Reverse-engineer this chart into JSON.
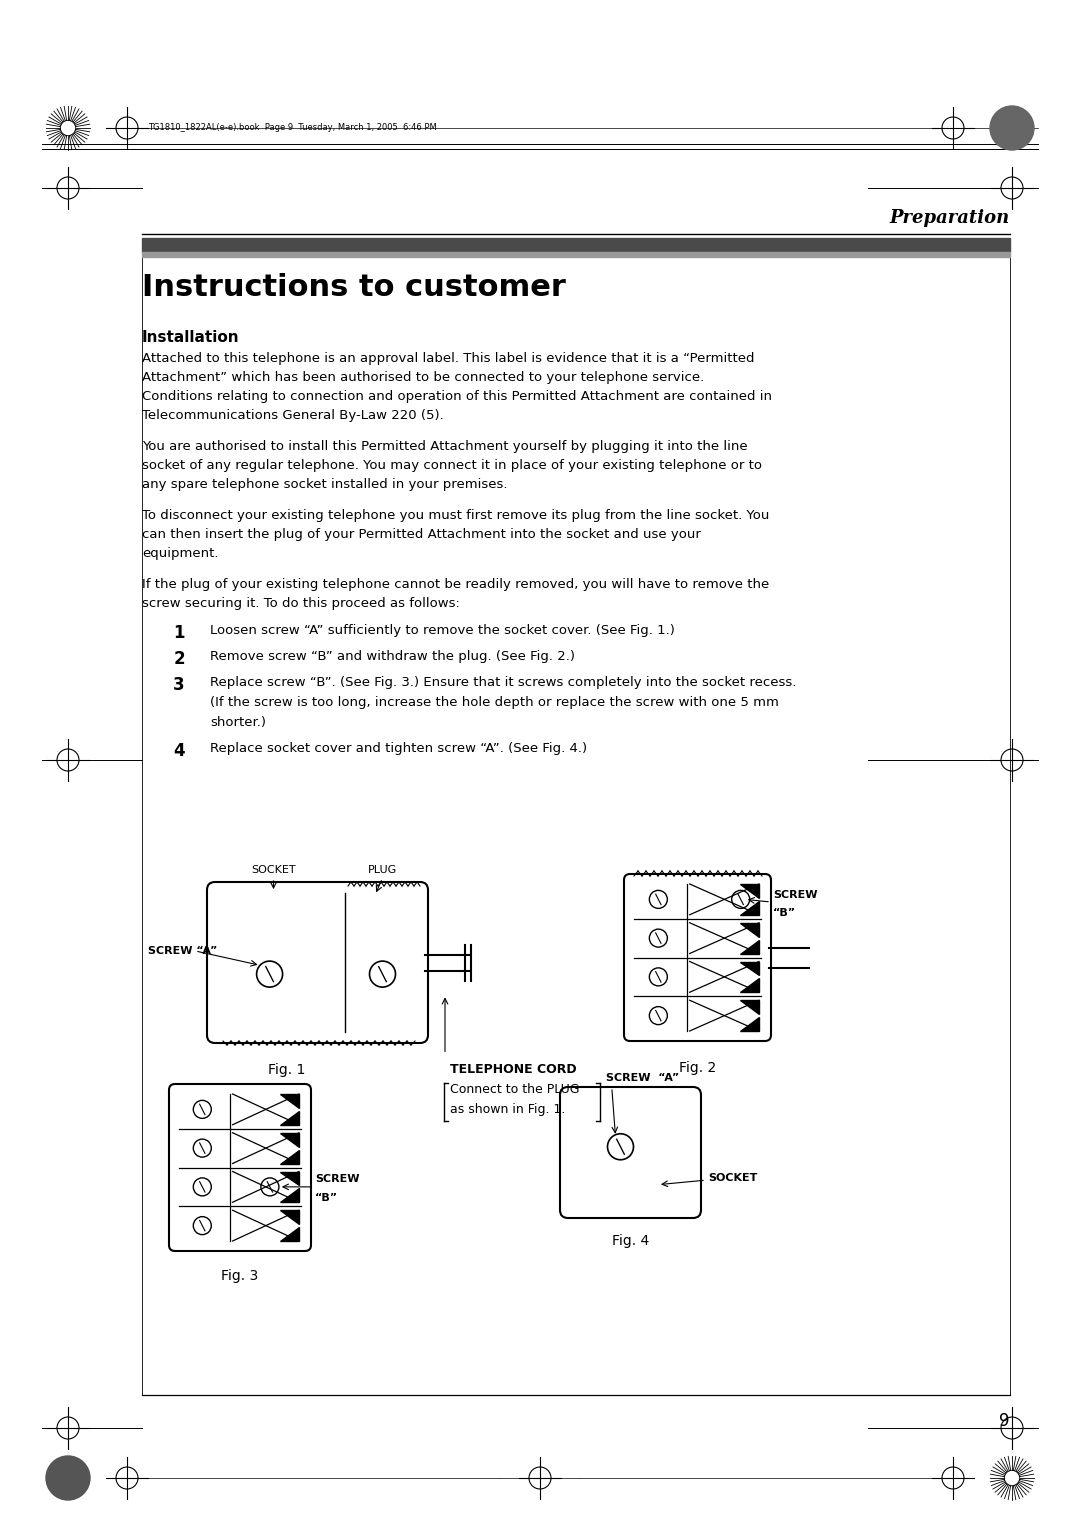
{
  "bg_color": "#ffffff",
  "page_width": 10.8,
  "page_height": 15.28,
  "header_file_text": "TG1810_1822AL(e-e).book  Page 9  Tuesday, March 1, 2005  6:46 PM",
  "section_title": "Preparation",
  "page_title": "Instructions to customer",
  "subsection": "Installation",
  "para1_l1": "Attached to this telephone is an approval label. This label is evidence that it is a “Permitted",
  "para1_l2": "Attachment” which has been authorised to be connected to your telephone service.",
  "para1_l3": "Conditions relating to connection and operation of this Permitted Attachment are contained in",
  "para1_l4": "Telecommunications General By-Law 220 (5).",
  "para2_l1": "You are authorised to install this Permitted Attachment yourself by plugging it into the line",
  "para2_l2": "socket of any regular telephone. You may connect it in place of your existing telephone or to",
  "para2_l3": "any spare telephone socket installed in your premises.",
  "para3_l1": "To disconnect your existing telephone you must first remove its plug from the line socket. You",
  "para3_l2": "can then insert the plug of your Permitted Attachment into the socket and use your",
  "para3_l3": "equipment.",
  "para4_l1": "If the plug of your existing telephone cannot be readily removed, you will have to remove the",
  "para4_l2": "screw securing it. To do this proceed as follows:",
  "step1": "Loosen screw “A” sufficiently to remove the socket cover. (See Fig. 1.)",
  "step2": "Remove screw “B” and withdraw the plug. (See Fig. 2.)",
  "step3_l1": "Replace screw “B”. (See Fig. 3.) Ensure that it screws completely into the socket recess.",
  "step3_l2": "(If the screw is too long, increase the hole depth or replace the screw with one 5 mm",
  "step3_l3": "shorter.)",
  "step4": "Replace socket cover and tighten screw “A”. (See Fig. 4.)",
  "fig1_label": "Fig. 1",
  "fig2_label": "Fig. 2",
  "fig3_label": "Fig. 3",
  "fig4_label": "Fig. 4",
  "page_number": "9",
  "text_color": "#000000",
  "dark_bar_color": "#4a4a4a",
  "light_bar_color": "#999999",
  "tel_cord_label": "TELEPHONE CORD",
  "tel_cord_sub1": "Connect to the PLUG",
  "tel_cord_sub2": "as shown in Fig. 1.",
  "screw_a": "SCREW “A”",
  "screw_b_label": "SCREW",
  "screw_b_quote": "“B”",
  "socket_label": "SOCKET",
  "plug_label": "PLUG"
}
